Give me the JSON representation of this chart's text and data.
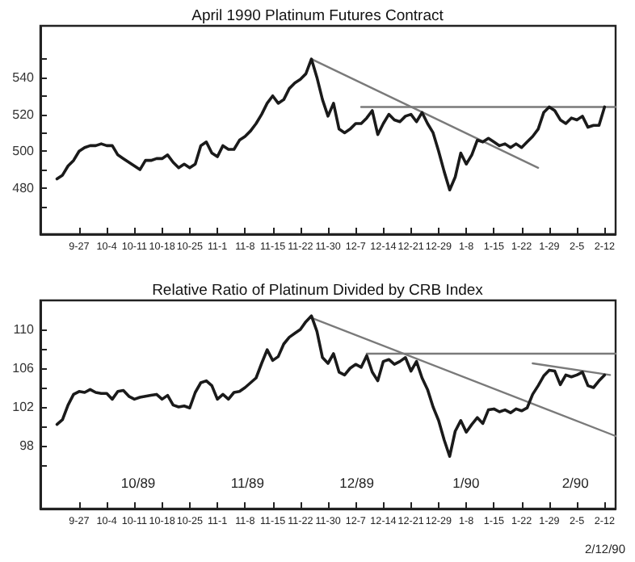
{
  "chart_data": [
    {
      "type": "line",
      "title": "April 1990 Platinum Futures Contract",
      "marker": "none",
      "categories": [
        null,
        null,
        null,
        null,
        null,
        null,
        null,
        "9-27",
        null,
        null,
        null,
        null,
        "10-4",
        null,
        null,
        null,
        null,
        "10-11",
        null,
        null,
        null,
        null,
        "10-18",
        null,
        null,
        null,
        null,
        "10-25",
        null,
        null,
        null,
        null,
        "11-1",
        null,
        null,
        null,
        null,
        "11-8",
        null,
        null,
        null,
        null,
        "11-15",
        null,
        null,
        null,
        null,
        "11-22",
        null,
        null,
        null,
        null,
        "11-30",
        null,
        null,
        null,
        null,
        "12-7",
        null,
        null,
        null,
        null,
        "12-14",
        null,
        null,
        null,
        null,
        "12-21",
        null,
        null,
        null,
        null,
        "12-29",
        null,
        null,
        null,
        null,
        "1-8",
        null,
        null,
        null,
        null,
        "1-15",
        null,
        null,
        null,
        null,
        "1-22",
        null,
        null,
        null,
        null,
        "1-29",
        null,
        null,
        null,
        null,
        "2-5",
        null,
        null,
        null,
        null,
        "2-12",
        null,
        null
      ],
      "ylim": [
        455,
        568
      ],
      "yticks": [
        {
          "value": 470,
          "label": null
        },
        480,
        {
          "value": 490,
          "label": null
        },
        500,
        {
          "value": 510,
          "label": null
        },
        520,
        {
          "value": 530,
          "label": null
        },
        540,
        {
          "value": 550,
          "label": null
        }
      ],
      "series": [
        {
          "color": "#1a1a1a",
          "values": [
            null,
            null,
            null,
            485,
            487,
            492,
            495,
            500,
            502,
            503,
            503,
            504,
            503,
            503,
            498,
            496,
            494,
            492,
            490,
            495,
            495,
            496,
            496,
            498,
            494,
            491,
            493,
            491,
            493,
            503,
            505,
            499,
            497,
            503,
            501,
            501,
            506,
            508,
            511,
            515,
            520,
            526,
            530,
            526,
            528,
            534,
            537,
            539,
            542,
            550,
            540,
            528,
            519,
            526,
            512,
            510,
            512,
            515,
            515,
            518,
            522,
            509,
            515,
            520,
            517,
            516,
            519,
            520,
            516,
            521,
            515,
            510,
            500,
            489,
            479,
            486,
            499,
            493,
            498,
            506,
            505,
            507,
            505,
            503,
            504,
            502,
            504,
            502,
            505,
            508,
            512,
            521,
            524,
            522,
            517,
            515,
            518,
            517,
            519,
            513,
            514,
            514,
            524,
            null,
            null
          ]
        },
        {
          "type": "line",
          "color": "#7a7a7a",
          "values": [
            null,
            null,
            null,
            null,
            null,
            null,
            null,
            null,
            null,
            null,
            null,
            null,
            null,
            null,
            null,
            null,
            null,
            null,
            null,
            null,
            null,
            null,
            null,
            null,
            null,
            null,
            null,
            null,
            null,
            null,
            null,
            null,
            null,
            null,
            null,
            null,
            null,
            null,
            null,
            null,
            null,
            null,
            null,
            null,
            null,
            null,
            null,
            null,
            null,
            550,
            null,
            null,
            null,
            null,
            null,
            null,
            null,
            null,
            null,
            null,
            null,
            null,
            null,
            null,
            null,
            null,
            null,
            null,
            null,
            null,
            null,
            null,
            null,
            null,
            null,
            null,
            null,
            null,
            null,
            null,
            null,
            null,
            null,
            null,
            null,
            null,
            null,
            null,
            null,
            null,
            491,
            null,
            null,
            null,
            null,
            null,
            null,
            null,
            null,
            null,
            null,
            null,
            null,
            null,
            null
          ]
        },
        {
          "type": "line",
          "color": "#7a7a7a",
          "values": [
            null,
            null,
            null,
            null,
            null,
            null,
            null,
            null,
            null,
            null,
            null,
            null,
            null,
            null,
            null,
            null,
            null,
            null,
            null,
            null,
            null,
            null,
            null,
            null,
            null,
            null,
            null,
            null,
            null,
            null,
            null,
            null,
            null,
            null,
            null,
            null,
            null,
            null,
            null,
            null,
            null,
            null,
            null,
            null,
            null,
            null,
            null,
            null,
            null,
            null,
            null,
            null,
            null,
            null,
            null,
            null,
            null,
            null,
            524,
            null,
            null,
            null,
            null,
            null,
            null,
            null,
            null,
            null,
            null,
            null,
            null,
            null,
            null,
            null,
            null,
            null,
            null,
            null,
            null,
            null,
            null,
            null,
            null,
            null,
            null,
            null,
            null,
            null,
            null,
            null,
            null,
            null,
            null,
            null,
            null,
            null,
            null,
            null,
            null,
            null,
            null,
            null,
            null,
            null,
            524
          ]
        }
      ]
    },
    {
      "type": "line",
      "title": "Relative Ratio of Platinum Divided by CRB Index",
      "marker": "none",
      "categories": [
        null,
        null,
        null,
        null,
        null,
        null,
        null,
        "9-27",
        null,
        null,
        null,
        null,
        "10-4",
        null,
        null,
        null,
        null,
        "10-11",
        null,
        null,
        null,
        null,
        "10-18",
        null,
        null,
        null,
        null,
        "10-25",
        null,
        null,
        null,
        null,
        "11-1",
        null,
        null,
        null,
        null,
        "11-8",
        null,
        null,
        null,
        null,
        "11-15",
        null,
        null,
        null,
        null,
        "11-22",
        null,
        null,
        null,
        null,
        "11-30",
        null,
        null,
        null,
        null,
        "12-7",
        null,
        null,
        null,
        null,
        "12-14",
        null,
        null,
        null,
        null,
        "12-21",
        null,
        null,
        null,
        null,
        "12-29",
        null,
        null,
        null,
        null,
        "1-8",
        null,
        null,
        null,
        null,
        "1-15",
        null,
        null,
        null,
        null,
        "1-22",
        null,
        null,
        null,
        null,
        "1-29",
        null,
        null,
        null,
        null,
        "2-5",
        null,
        null,
        null,
        null,
        "2-12",
        null,
        null
      ],
      "ylim": [
        91.5,
        113
      ],
      "yticks": [
        {
          "value": 96,
          "label": null
        },
        98,
        {
          "value": 100,
          "label": null
        },
        102,
        {
          "value": 104,
          "label": null
        },
        106,
        {
          "value": 108,
          "label": null
        },
        110
      ],
      "series": [
        {
          "color": "#1a1a1a",
          "values": [
            null,
            null,
            null,
            100.2,
            100.7,
            102.2,
            103.3,
            103.6,
            103.5,
            103.8,
            103.5,
            103.4,
            103.4,
            102.8,
            103.6,
            103.7,
            103.1,
            102.8,
            103.0,
            103.1,
            103.2,
            103.3,
            102.8,
            103.2,
            102.2,
            102.0,
            102.1,
            101.9,
            103.5,
            104.5,
            104.7,
            104.2,
            102.8,
            103.3,
            102.8,
            103.5,
            103.6,
            104.0,
            104.5,
            105.0,
            106.5,
            107.9,
            106.8,
            107.2,
            108.5,
            109.2,
            109.6,
            110.0,
            110.8,
            111.4,
            109.8,
            107.1,
            106.5,
            107.5,
            105.6,
            105.3,
            106.0,
            106.4,
            106.1,
            107.3,
            105.6,
            104.7,
            106.7,
            106.9,
            106.4,
            106.7,
            107.1,
            105.7,
            106.7,
            105.0,
            103.8,
            102.0,
            100.6,
            98.6,
            96.9,
            99.5,
            100.6,
            99.4,
            100.2,
            100.9,
            100.3,
            101.7,
            101.8,
            101.5,
            101.7,
            101.4,
            101.8,
            101.6,
            101.9,
            103.3,
            104.2,
            105.2,
            105.8,
            105.7,
            104.3,
            105.3,
            105.1,
            105.3,
            105.6,
            104.2,
            104.0,
            104.7,
            105.3,
            null,
            null
          ]
        },
        {
          "type": "line",
          "color": "#7a7a7a",
          "values": [
            null,
            null,
            null,
            null,
            null,
            null,
            null,
            null,
            null,
            null,
            null,
            null,
            null,
            null,
            null,
            null,
            null,
            null,
            null,
            null,
            null,
            null,
            null,
            null,
            null,
            null,
            null,
            null,
            null,
            null,
            null,
            null,
            null,
            null,
            null,
            null,
            null,
            null,
            null,
            null,
            null,
            null,
            null,
            null,
            null,
            null,
            null,
            null,
            null,
            111.2,
            null,
            null,
            null,
            null,
            null,
            null,
            null,
            null,
            null,
            null,
            null,
            null,
            null,
            null,
            null,
            null,
            null,
            null,
            null,
            null,
            null,
            null,
            null,
            null,
            null,
            null,
            null,
            null,
            null,
            null,
            null,
            null,
            null,
            null,
            null,
            null,
            null,
            null,
            null,
            null,
            null,
            null,
            null,
            null,
            null,
            null,
            null,
            null,
            null,
            null,
            null,
            null,
            null,
            null,
            99
          ]
        },
        {
          "type": "line",
          "color": "#7a7a7a",
          "values": [
            null,
            null,
            null,
            null,
            null,
            null,
            null,
            null,
            null,
            null,
            null,
            null,
            null,
            null,
            null,
            null,
            null,
            null,
            null,
            null,
            null,
            null,
            null,
            null,
            null,
            null,
            null,
            null,
            null,
            null,
            null,
            null,
            null,
            null,
            null,
            null,
            null,
            null,
            null,
            null,
            null,
            null,
            null,
            null,
            null,
            null,
            null,
            null,
            null,
            null,
            null,
            null,
            null,
            null,
            null,
            null,
            null,
            null,
            null,
            107.5,
            null,
            null,
            null,
            null,
            null,
            null,
            null,
            null,
            null,
            null,
            null,
            null,
            null,
            null,
            null,
            null,
            null,
            null,
            null,
            null,
            null,
            null,
            null,
            null,
            null,
            null,
            null,
            null,
            null,
            null,
            null,
            null,
            null,
            null,
            null,
            null,
            null,
            null,
            null,
            null,
            null,
            null,
            null,
            null,
            107.5
          ]
        },
        {
          "type": "line",
          "color": "#7a7a7a",
          "values": [
            null,
            null,
            null,
            null,
            null,
            null,
            null,
            null,
            null,
            null,
            null,
            null,
            null,
            null,
            null,
            null,
            null,
            null,
            null,
            null,
            null,
            null,
            null,
            null,
            null,
            null,
            null,
            null,
            null,
            null,
            null,
            null,
            null,
            null,
            null,
            null,
            null,
            null,
            null,
            null,
            null,
            null,
            null,
            null,
            null,
            null,
            null,
            null,
            null,
            null,
            null,
            null,
            null,
            null,
            null,
            null,
            null,
            null,
            null,
            null,
            null,
            null,
            null,
            null,
            null,
            null,
            null,
            null,
            null,
            null,
            null,
            null,
            null,
            null,
            null,
            null,
            null,
            null,
            null,
            null,
            null,
            null,
            null,
            null,
            null,
            null,
            null,
            null,
            null,
            106.5,
            null,
            null,
            null,
            null,
            null,
            null,
            null,
            null,
            null,
            null,
            null,
            null,
            null,
            105.3,
            null
          ]
        }
      ],
      "annotations": [
        "10/89",
        "11/89",
        "12/89",
        "1/90",
        "2/90",
        "2/12/90"
      ]
    }
  ]
}
